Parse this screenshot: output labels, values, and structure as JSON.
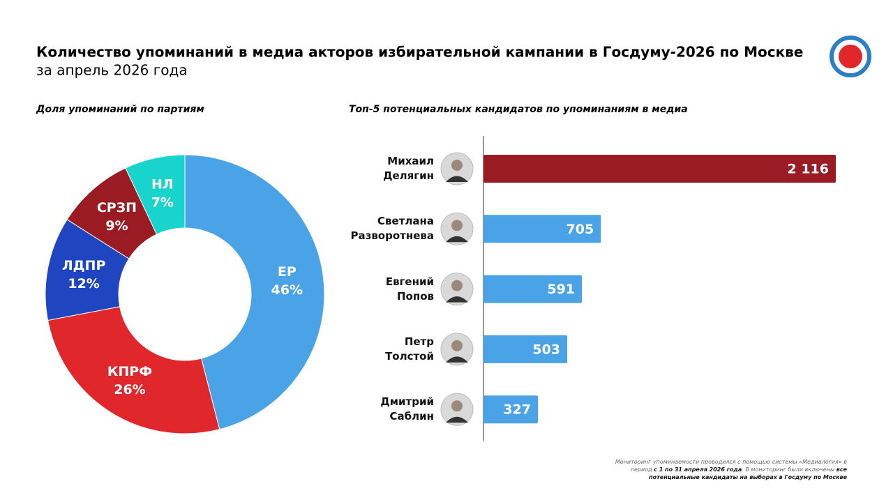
{
  "header": {
    "title": "Количество упоминаний в медиа акторов избирательной кампании в Госдуму-2026 по Москве",
    "subtitle": "за апрель 2026 года"
  },
  "chart_data": [
    {
      "type": "pie",
      "title": "Доля упоминаний по партиям",
      "categories": [
        "ЕР",
        "КПРФ",
        "ЛДПР",
        "СРЗП",
        "НЛ"
      ],
      "values": [
        46,
        26,
        12,
        9,
        7
      ],
      "value_labels": [
        "46%",
        "26%",
        "12%",
        "9%",
        "7%"
      ],
      "colors": [
        "#4aa3e6",
        "#e0272c",
        "#1f46c0",
        "#9b1b22",
        "#19d4cc"
      ]
    },
    {
      "type": "bar",
      "title": "Топ-5 потенциальных кандидатов по упоминаниям в медиа",
      "categories": [
        "Михаил Делягин",
        "Светлана Разворотнева",
        "Евгений Попов",
        "Петр Толстой",
        "Дмитрий Саблин"
      ],
      "values": [
        2116,
        705,
        591,
        503,
        327
      ],
      "value_labels": [
        "2 116",
        "705",
        "591",
        "503",
        "327"
      ],
      "colors": [
        "#9b1b22",
        "#4aa3e6",
        "#4aa3e6",
        "#4aa3e6",
        "#4aa3e6"
      ]
    }
  ],
  "footnote": [
    "Мониторинг упоминаемости проводился с помощью системы «Медиалогия» в период ",
    "с 1 по 31 апреля 2026 года",
    ". В мониторинг были включены ",
    "все потенциальные кандидаты на выборах в Госдуму по Москве"
  ]
}
